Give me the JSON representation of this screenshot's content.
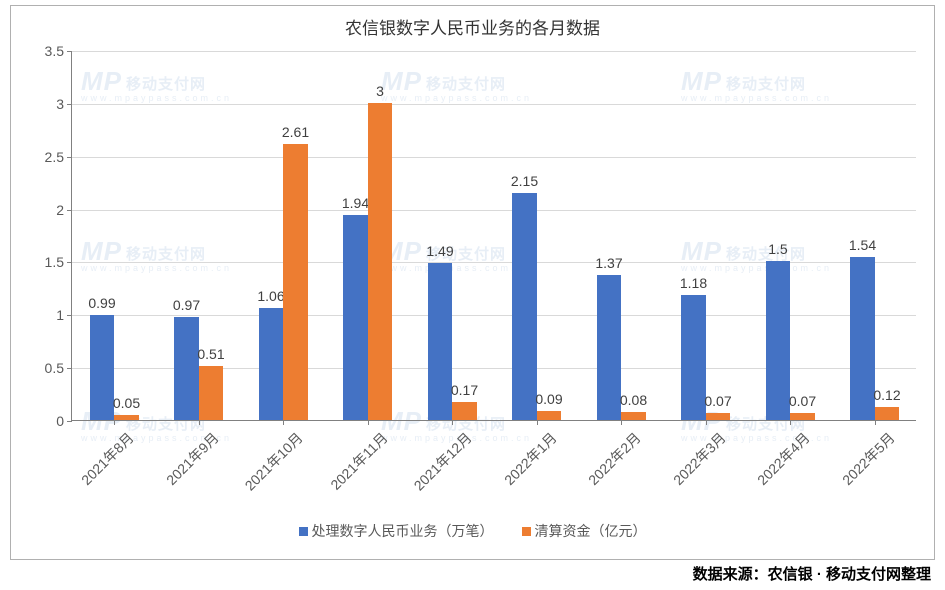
{
  "chart": {
    "type": "bar",
    "title": "农信银数字人民币业务的各月数据",
    "title_fontsize": 17,
    "title_color": "#333333",
    "background_color": "#ffffff",
    "border_color": "#b0b0b0",
    "grid_color": "#d9d9d9",
    "axis_color": "#808080",
    "tick_label_color": "#595959",
    "tick_label_fontsize": 14,
    "data_label_fontsize": 14,
    "data_label_color": "#404040",
    "ylim": [
      0,
      3.5
    ],
    "yticks": [
      0,
      0.5,
      1,
      1.5,
      2,
      2.5,
      3,
      3.5
    ],
    "categories": [
      "2021年8月",
      "2021年9月",
      "2021年10月",
      "2021年11月",
      "2021年12月",
      "2022年1月",
      "2022年2月",
      "2022年3月",
      "2022年4月",
      "2022年5月"
    ],
    "xlabel_rotation_deg": -45,
    "series": [
      {
        "name": "处理数字人民币业务（万笔）",
        "color": "#4472c4",
        "values": [
          0.99,
          0.97,
          1.06,
          1.94,
          1.49,
          2.15,
          1.37,
          1.18,
          1.5,
          1.54
        ]
      },
      {
        "name": "清算资金（亿元）",
        "color": "#ed7d31",
        "values": [
          0.05,
          0.51,
          2.61,
          3,
          0.17,
          0.09,
          0.08,
          0.07,
          0.07,
          0.12
        ]
      }
    ],
    "bar_group_width_ratio": 0.58,
    "bar_gap_ratio": 0.0,
    "legend_position": "bottom-center",
    "legend_swatch_size": 9
  },
  "source": {
    "label": "数据来源：",
    "text": "农信银 · 移动支付网整理"
  },
  "watermark": {
    "logo_text": "MP",
    "cn_text": "移动支付网",
    "sub_text": "www.mpaypass.com.cn",
    "color": "#e7eef6"
  }
}
